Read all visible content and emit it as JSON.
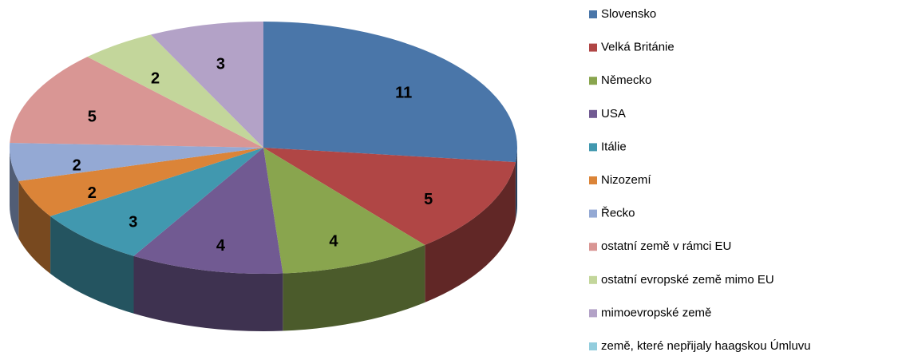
{
  "chart_data": {
    "type": "pie3d",
    "categories": [
      "Slovensko",
      "Velká Británie",
      "Německo",
      "USA",
      "Itálie",
      "Nizozemí",
      "Řecko",
      "ostatní země v rámci EU",
      "ostatní evropské země mimo EU",
      "mimoevropské země",
      "země, které nepřijaly haagskou Úmluvu"
    ],
    "values": [
      11,
      5,
      4,
      4,
      3,
      2,
      2,
      5,
      2,
      3,
      0
    ],
    "colors": [
      "#4a76a9",
      "#b04645",
      "#89a54e",
      "#715a92",
      "#4198af",
      "#db8438",
      "#94a9d4",
      "#d99694",
      "#c3d69b",
      "#b3a2c7",
      "#93cddd"
    ],
    "legend": "right"
  }
}
